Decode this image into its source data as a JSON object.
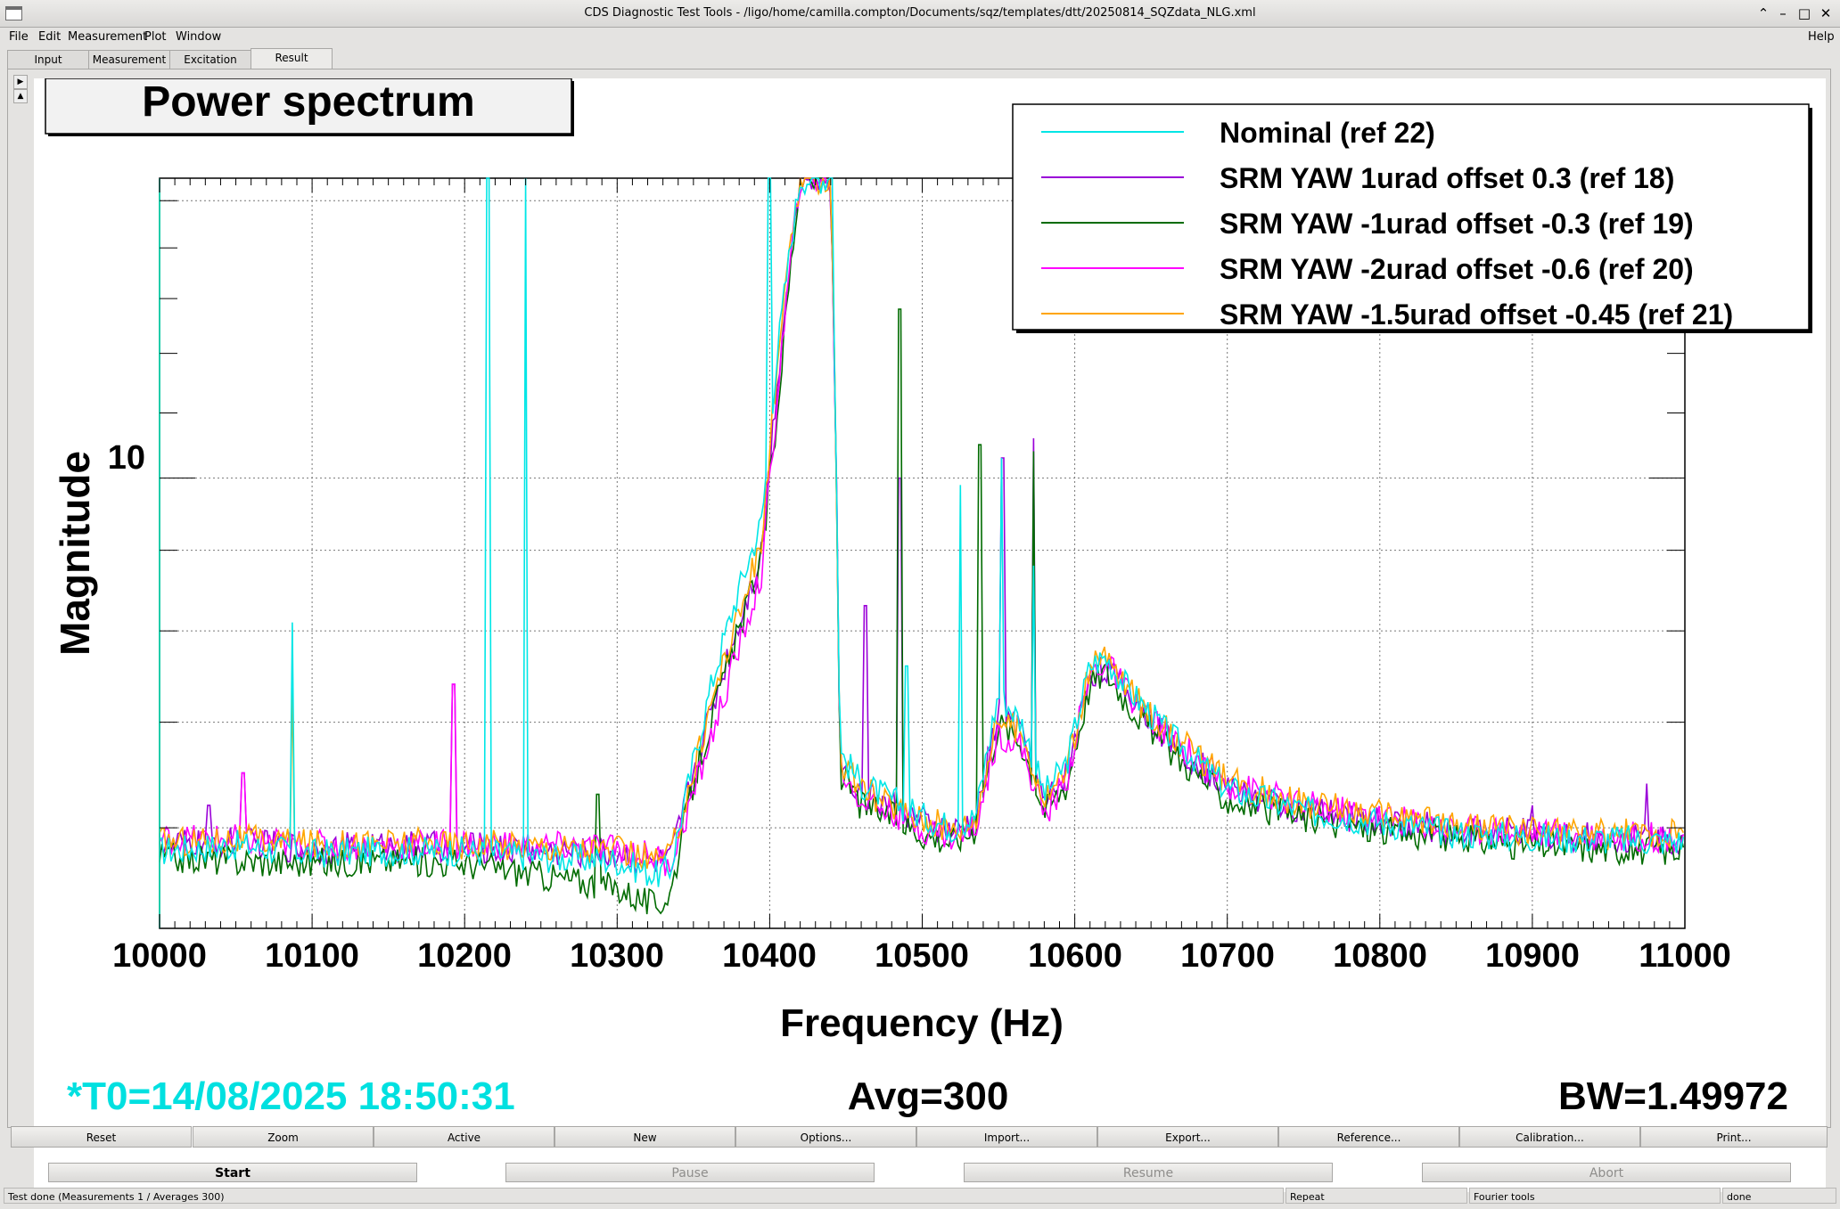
{
  "window": {
    "title": "CDS Diagnostic Test Tools - /ligo/home/camilla.compton/Documents/sqz/templates/dtt/20250814_SQZdata_NLG.xml",
    "controls": [
      "–",
      "▫",
      "□",
      "✕"
    ]
  },
  "menubar": {
    "items": [
      "File",
      "Edit",
      "Measurement",
      "Plot",
      "Window"
    ],
    "help": "Help"
  },
  "tabs": [
    "Input",
    "Measurement",
    "Excitation",
    "Result"
  ],
  "active_tab": "Result",
  "plot": {
    "title": "Power spectrum",
    "t0": "*T0=14/08/2025 18:50:31",
    "avg": "Avg=300",
    "bw": "BW=1.49972",
    "t0_color": "#00e0e0"
  },
  "chart_data": {
    "type": "line",
    "title": "Power spectrum",
    "xlabel": "Frequency (Hz)",
    "ylabel": "Magnitude",
    "xlim": [
      10000,
      11000
    ],
    "ylim": [
      5.18,
      15.5
    ],
    "yscale": "log",
    "grid": true,
    "legend_position": "top-right",
    "xticks": [
      "10000",
      "10100",
      "10200",
      "10300",
      "10400",
      "10500",
      "10600",
      "10700",
      "10800",
      "10900",
      "11000"
    ],
    "yticks": [
      "10"
    ],
    "series": [
      {
        "name": "Nominal (ref 22)",
        "color": "#00e6e6",
        "peaks": [
          [
            10087,
            8.1
          ],
          [
            10215,
            15.5
          ],
          [
            10240,
            15.5
          ],
          [
            10400,
            15.5
          ],
          [
            10440,
            15.5
          ],
          [
            10490,
            7.6
          ],
          [
            10525,
            9.9
          ],
          [
            10552,
            10.3
          ],
          [
            10573,
            8.8
          ]
        ],
        "x": [
          10000,
          10050,
          10100,
          10150,
          10200,
          10250,
          10300,
          10325,
          10335,
          10350,
          10365,
          10380,
          10395,
          10405,
          10420,
          10440,
          10446,
          10460,
          10480,
          10500,
          10520,
          10535,
          10550,
          10565,
          10580,
          10595,
          10610,
          10620,
          10635,
          10660,
          10700,
          10750,
          10800,
          10850,
          10900,
          10950,
          11000
        ],
        "y": [
          5.8,
          5.85,
          5.78,
          5.8,
          5.8,
          5.75,
          5.72,
          5.6,
          5.65,
          6.6,
          7.6,
          8.5,
          9.4,
          12.0,
          15.5,
          15.5,
          6.7,
          6.4,
          6.25,
          6.1,
          6.0,
          6.1,
          7.3,
          7.0,
          6.3,
          6.6,
          7.6,
          7.7,
          7.35,
          6.9,
          6.35,
          6.15,
          6.05,
          5.95,
          5.92,
          5.9,
          5.88
        ]
      },
      {
        "name": "SRM YAW 1urad offset 0.3 (ref 18)",
        "color": "#9a00d8",
        "peaks": [
          [
            10032,
            6.2
          ],
          [
            10055,
            6.5
          ],
          [
            10193,
            7.4
          ],
          [
            10463,
            8.3
          ],
          [
            10485,
            10.0
          ],
          [
            10553,
            10.3
          ],
          [
            10573,
            10.6
          ],
          [
            10900,
            6.2
          ],
          [
            10975,
            6.4
          ]
        ],
        "x": [
          10000,
          10050,
          10100,
          10150,
          10200,
          10250,
          10300,
          10325,
          10335,
          10350,
          10365,
          10380,
          10395,
          10405,
          10420,
          10440,
          10446,
          10460,
          10480,
          10500,
          10520,
          10535,
          10550,
          10565,
          10580,
          10595,
          10610,
          10620,
          10635,
          10660,
          10700,
          10750,
          10800,
          10850,
          10900,
          10950,
          11000
        ],
        "y": [
          5.85,
          5.88,
          5.82,
          5.84,
          5.84,
          5.8,
          5.78,
          5.7,
          5.72,
          6.5,
          7.3,
          8.1,
          9.0,
          11.5,
          15.5,
          15.5,
          6.6,
          6.3,
          6.2,
          6.05,
          5.95,
          6.05,
          7.1,
          6.9,
          6.2,
          6.5,
          7.5,
          7.6,
          7.3,
          6.85,
          6.35,
          6.15,
          6.05,
          5.98,
          5.95,
          5.92,
          5.9
        ]
      },
      {
        "name": "SRM YAW -1urad offset -0.3 (ref 19)",
        "color": "#006b00",
        "peaks": [
          [
            10287,
            6.3
          ],
          [
            10485,
            12.8
          ],
          [
            10538,
            10.5
          ],
          [
            10573,
            10.4
          ]
        ],
        "x": [
          10000,
          10050,
          10100,
          10150,
          10200,
          10250,
          10300,
          10325,
          10335,
          10350,
          10365,
          10380,
          10395,
          10405,
          10420,
          10440,
          10446,
          10460,
          10480,
          10500,
          10520,
          10535,
          10550,
          10565,
          10580,
          10595,
          10610,
          10620,
          10635,
          10660,
          10700,
          10750,
          10800,
          10850,
          10900,
          10950,
          11000
        ],
        "y": [
          5.75,
          5.72,
          5.7,
          5.72,
          5.7,
          5.6,
          5.5,
          5.35,
          5.45,
          6.4,
          7.2,
          8.0,
          8.9,
          11.0,
          15.5,
          15.5,
          6.5,
          6.2,
          6.1,
          5.95,
          5.88,
          6.0,
          7.0,
          6.8,
          6.15,
          6.4,
          7.4,
          7.55,
          7.2,
          6.75,
          6.25,
          6.08,
          5.98,
          5.9,
          5.85,
          5.82,
          5.8
        ]
      },
      {
        "name": "SRM YAW -2urad offset -0.6 (ref 20)",
        "color": "#ff00ff",
        "peaks": [
          [
            10055,
            6.5
          ],
          [
            10193,
            7.4
          ]
        ],
        "x": [
          10000,
          10050,
          10100,
          10150,
          10200,
          10250,
          10300,
          10325,
          10335,
          10350,
          10365,
          10380,
          10395,
          10405,
          10420,
          10440,
          10446,
          10460,
          10480,
          10500,
          10520,
          10535,
          10550,
          10565,
          10580,
          10595,
          10610,
          10620,
          10635,
          10660,
          10700,
          10750,
          10800,
          10850,
          10900,
          10950,
          11000
        ],
        "y": [
          5.9,
          5.9,
          5.85,
          5.85,
          5.86,
          5.84,
          5.82,
          5.75,
          5.7,
          6.3,
          7.0,
          7.8,
          8.7,
          11.2,
          15.5,
          15.5,
          6.55,
          6.25,
          6.15,
          6.0,
          5.92,
          6.0,
          6.9,
          6.75,
          6.1,
          6.45,
          7.5,
          7.65,
          7.3,
          6.88,
          6.4,
          6.2,
          6.1,
          6.0,
          5.96,
          5.93,
          5.92
        ]
      },
      {
        "name": "SRM YAW -1.5urad offset -0.45 (ref 21)",
        "color": "#ffa500",
        "peaks": [
          [
            10087,
            7.4
          ]
        ],
        "x": [
          10000,
          10050,
          10100,
          10150,
          10200,
          10250,
          10300,
          10325,
          10335,
          10350,
          10365,
          10380,
          10395,
          10405,
          10420,
          10440,
          10446,
          10460,
          10480,
          10500,
          10520,
          10535,
          10550,
          10565,
          10580,
          10595,
          10610,
          10620,
          10635,
          10660,
          10700,
          10750,
          10800,
          10850,
          10900,
          10950,
          11000
        ],
        "y": [
          5.88,
          5.9,
          5.86,
          5.87,
          5.86,
          5.85,
          5.8,
          5.72,
          5.75,
          6.5,
          7.4,
          8.2,
          9.1,
          11.8,
          15.5,
          15.5,
          6.6,
          6.35,
          6.2,
          6.08,
          5.98,
          6.08,
          7.05,
          6.9,
          6.25,
          6.55,
          7.55,
          7.7,
          7.35,
          6.92,
          6.42,
          6.22,
          6.12,
          6.02,
          5.98,
          5.95,
          5.94
        ]
      }
    ]
  },
  "buttons": [
    "Reset",
    "Zoom",
    "Active",
    "New",
    "Options...",
    "Import...",
    "Export...",
    "Reference...",
    "Calibration...",
    "Print..."
  ],
  "controls": {
    "start": "Start",
    "pause": "Pause",
    "resume": "Resume",
    "abort": "Abort"
  },
  "status": {
    "message": "Test done (Measurements 1 / Averages 300)",
    "repeat": "Repeat",
    "tool": "Fourier tools",
    "state": "done"
  }
}
